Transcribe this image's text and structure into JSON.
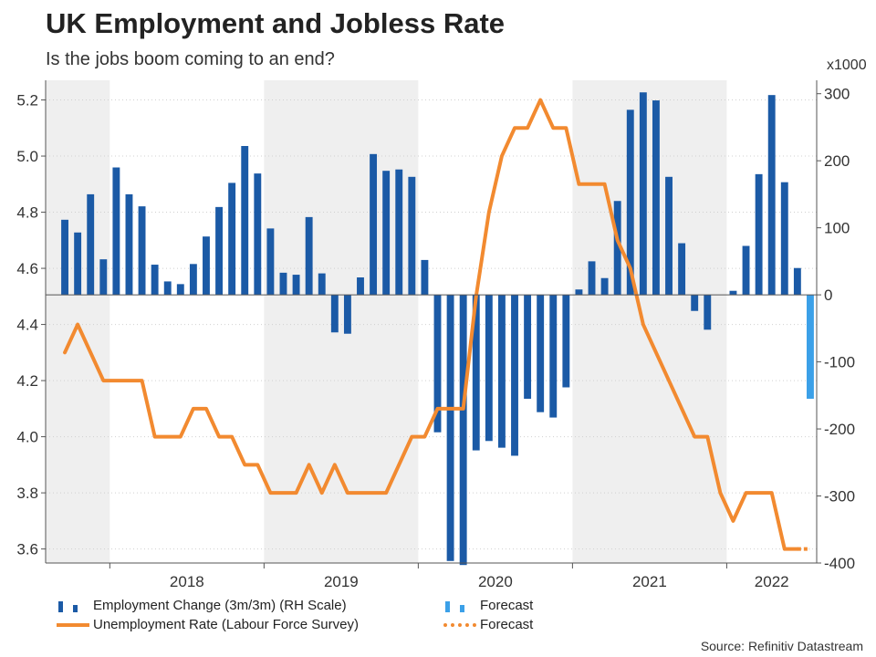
{
  "header": {
    "title": "UK Employment and Jobless Rate",
    "subtitle": "Is the jobs boom coming to an end?",
    "right_unit": "x1000"
  },
  "legend": {
    "employment": "Employment Change (3m/3m) (RH Scale)",
    "employment_forecast": "Forecast",
    "unemployment": "Unemployment Rate (Labour Force Survey)",
    "unemployment_forecast": "Forecast"
  },
  "source": "Source: Refinitiv Datastream",
  "colors": {
    "employment_bar": "#1b5aa6",
    "employment_forecast_bar": "#3ba0e8",
    "unemployment_line": "#f28a30",
    "recession_band": "#efefef"
  },
  "chart_data": {
    "type": "bar+line",
    "title": "UK Employment and Jobless Rate",
    "x": [
      "2017-09",
      "2017-10",
      "2017-11",
      "2017-12",
      "2018-01",
      "2018-02",
      "2018-03",
      "2018-04",
      "2018-05",
      "2018-06",
      "2018-07",
      "2018-08",
      "2018-09",
      "2018-10",
      "2018-11",
      "2018-12",
      "2019-01",
      "2019-02",
      "2019-03",
      "2019-04",
      "2019-05",
      "2019-06",
      "2019-07",
      "2019-08",
      "2019-09",
      "2019-10",
      "2019-11",
      "2019-12",
      "2020-01",
      "2020-02",
      "2020-03",
      "2020-04",
      "2020-05",
      "2020-06",
      "2020-07",
      "2020-08",
      "2020-09",
      "2020-10",
      "2020-11",
      "2020-12",
      "2021-01",
      "2021-02",
      "2021-03",
      "2021-04",
      "2021-05",
      "2021-06",
      "2021-07",
      "2021-08",
      "2021-09",
      "2021-10",
      "2021-11",
      "2021-12",
      "2022-01",
      "2022-02",
      "2022-03",
      "2022-04",
      "2022-05",
      "2022-06",
      "2022-07"
    ],
    "x_tick_labels": [
      "2018",
      "2019",
      "2020",
      "2021",
      "2022"
    ],
    "shaded_years": [
      "2017",
      "2019",
      "2021"
    ],
    "series": [
      {
        "name": "Employment Change (3m/3m) (RH Scale)",
        "type": "bar",
        "axis": "right",
        "values": [
          112,
          93,
          150,
          53,
          190,
          150,
          132,
          45,
          20,
          16,
          46,
          87,
          131,
          167,
          222,
          181,
          99,
          33,
          30,
          116,
          32,
          -56,
          -58,
          26,
          210,
          185,
          187,
          176,
          52,
          -205,
          -397,
          -403,
          -232,
          -218,
          -228,
          -240,
          -155,
          -175,
          -183,
          -138,
          8,
          50,
          25,
          140,
          276,
          302,
          290,
          176,
          77,
          -24,
          -52,
          0,
          6,
          73,
          180,
          298,
          168,
          40,
          -155
        ],
        "forecast_from_index": 58
      },
      {
        "name": "Unemployment Rate (Labour Force Survey)",
        "type": "line",
        "axis": "left",
        "values": [
          4.3,
          4.4,
          4.3,
          4.2,
          4.2,
          4.2,
          4.2,
          4.0,
          4.0,
          4.0,
          4.1,
          4.1,
          4.0,
          4.0,
          3.9,
          3.9,
          3.8,
          3.8,
          3.8,
          3.9,
          3.8,
          3.9,
          3.8,
          3.8,
          3.8,
          3.8,
          3.9,
          4.0,
          4.0,
          4.1,
          4.1,
          4.1,
          4.5,
          4.8,
          5.0,
          5.1,
          5.1,
          5.2,
          5.1,
          5.1,
          4.9,
          4.9,
          4.9,
          4.7,
          4.6,
          4.4,
          4.3,
          4.2,
          4.1,
          4.0,
          4.0,
          3.8,
          3.7,
          3.8,
          3.8,
          3.8,
          3.6,
          3.6,
          3.6
        ],
        "forecast_from_index": 57
      }
    ],
    "left_axis": {
      "label": "",
      "ylim": [
        3.55,
        5.27
      ],
      "ticks": [
        "3.6",
        "3.8",
        "4.0",
        "4.2",
        "4.4",
        "4.6",
        "4.8",
        "5.0",
        "5.2"
      ]
    },
    "right_axis": {
      "label": "x1000",
      "ylim": [
        -400,
        320
      ],
      "ticks": [
        "-400",
        "-300",
        "-200",
        "-100",
        "0",
        "100",
        "200",
        "300"
      ]
    },
    "xlabel": "",
    "grid": "horizontal dotted",
    "legend_position": "bottom-left"
  }
}
